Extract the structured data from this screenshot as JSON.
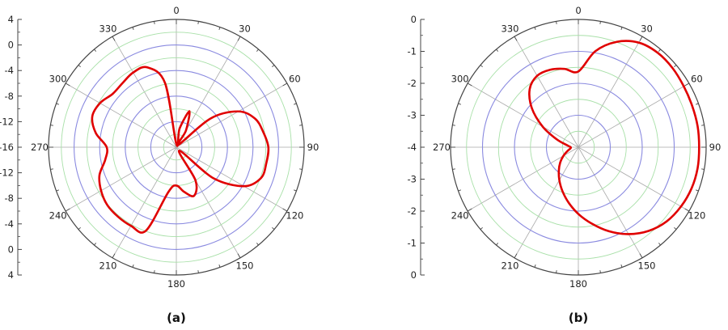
{
  "chart_data": [
    {
      "type": "polar-line",
      "panel_label": "(a)",
      "angle_ticks": [
        "0",
        "30",
        "60",
        "90",
        "120",
        "150",
        "180",
        "210",
        "240",
        "270",
        "300",
        "330"
      ],
      "radial_tick_labels": [
        "4",
        "0",
        "-4",
        "-8",
        "-12",
        "-16",
        "-12",
        "-8",
        "-4",
        "0",
        "4"
      ],
      "rlim": [
        -16,
        4
      ],
      "series": [
        {
          "color": "#e00000",
          "theta": [
            0,
            10,
            20,
            30,
            40,
            50,
            60,
            70,
            80,
            90,
            100,
            110,
            120,
            130,
            140,
            150,
            160,
            170,
            180,
            190,
            200,
            210,
            220,
            230,
            240,
            250,
            260,
            270,
            280,
            290,
            300,
            310,
            320,
            330,
            340,
            350,
            360
          ],
          "r": [
            -15.5,
            -13,
            -10,
            -13,
            -15.5,
            -9,
            -4.8,
            -2.9,
            -2.2,
            -1.6,
            -1.7,
            -1.9,
            -3.8,
            -8.5,
            -15.3,
            -10,
            -7.9,
            -8.9,
            -10,
            -8.9,
            -2.1,
            -1.8,
            -1.8,
            -1.9,
            -2.4,
            -3.2,
            -4.7,
            -5.1,
            -3.2,
            -2.0,
            -2.2,
            -3.0,
            -2.9,
            -2.5,
            -2.7,
            -5.8,
            -15.5
          ]
        }
      ]
    },
    {
      "type": "polar-line",
      "panel_label": "(b)",
      "angle_ticks": [
        "0",
        "30",
        "60",
        "90",
        "120",
        "150",
        "180",
        "210",
        "240",
        "270",
        "300",
        "330"
      ],
      "radial_tick_labels": [
        "0",
        "-1",
        "-2",
        "-3",
        "-4",
        "-3",
        "-2",
        "-1",
        "0"
      ],
      "rlim": [
        -4,
        0
      ],
      "series": [
        {
          "color": "#e00000",
          "theta": [
            0,
            10,
            20,
            30,
            40,
            50,
            60,
            70,
            80,
            90,
            100,
            110,
            120,
            130,
            140,
            150,
            160,
            170,
            180,
            190,
            200,
            210,
            220,
            230,
            240,
            250,
            260,
            270,
            280,
            290,
            300,
            310,
            320,
            330,
            340,
            350,
            360
          ],
          "r": [
            -1.63,
            -0.95,
            -0.49,
            -0.22,
            -0.14,
            -0.15,
            -0.19,
            -0.21,
            -0.21,
            -0.22,
            -0.21,
            -0.23,
            -0.29,
            -0.39,
            -0.58,
            -0.86,
            -1.2,
            -1.57,
            -1.91,
            -2.24,
            -2.54,
            -2.81,
            -3.05,
            -3.26,
            -3.46,
            -3.63,
            -3.74,
            -3.76,
            -3.64,
            -3.28,
            -2.71,
            -2.1,
            -1.63,
            -1.42,
            -1.42,
            -1.51,
            -1.63
          ]
        }
      ]
    }
  ]
}
